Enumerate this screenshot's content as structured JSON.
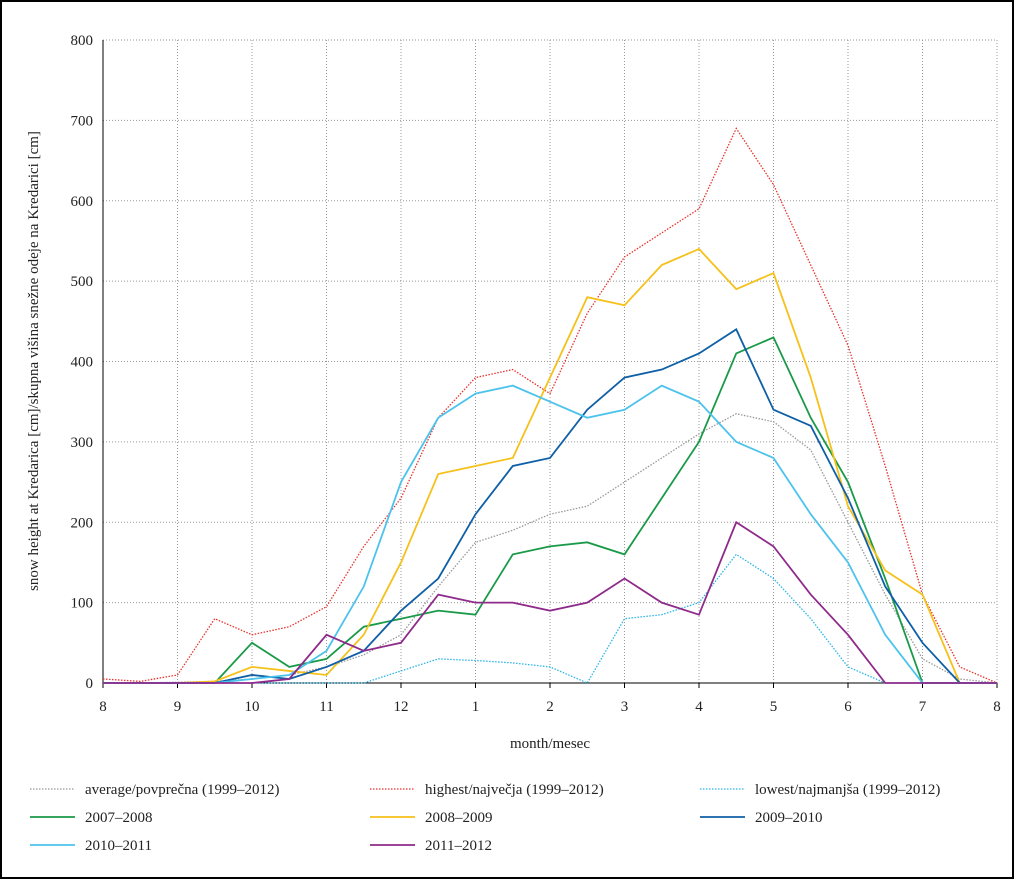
{
  "chart_data": {
    "type": "line",
    "xlabel": "month/mesec",
    "ylabel": "snow height at Kredarica [cm]/skupna višina snežne odeje na Kredarici [cm]",
    "x": [
      0,
      0.5,
      1,
      1.5,
      2,
      2.5,
      3,
      3.5,
      4,
      4.5,
      5,
      5.5,
      6,
      6.5,
      7,
      7.5,
      8,
      8.5,
      9,
      9.5,
      10,
      10.5,
      11,
      11.5,
      12
    ],
    "xlim": [
      0,
      12
    ],
    "xticks": [
      {
        "value": 0,
        "label": "8"
      },
      {
        "value": 1,
        "label": "9"
      },
      {
        "value": 2,
        "label": "10"
      },
      {
        "value": 3,
        "label": "11"
      },
      {
        "value": 4,
        "label": "12"
      },
      {
        "value": 5,
        "label": "1"
      },
      {
        "value": 6,
        "label": "2"
      },
      {
        "value": 7,
        "label": "3"
      },
      {
        "value": 8,
        "label": "4"
      },
      {
        "value": 9,
        "label": "5"
      },
      {
        "value": 10,
        "label": "6"
      },
      {
        "value": 11,
        "label": "7"
      },
      {
        "value": 12,
        "label": "8"
      }
    ],
    "ylim": [
      0,
      800
    ],
    "yticks": [
      0,
      100,
      200,
      300,
      400,
      500,
      600,
      700,
      800
    ],
    "grid": true,
    "series": [
      {
        "name": "average/povprečna (1999–2012)",
        "color": "#999999",
        "style": "dotted",
        "values": [
          0,
          0,
          1,
          2,
          5,
          10,
          20,
          35,
          60,
          120,
          175,
          190,
          210,
          220,
          250,
          280,
          310,
          335,
          325,
          290,
          200,
          110,
          30,
          5,
          0
        ]
      },
      {
        "name": "highest/največja (1999–2012)",
        "color": "#e8322b",
        "style": "dotted",
        "values": [
          5,
          2,
          10,
          80,
          60,
          70,
          95,
          170,
          230,
          330,
          380,
          390,
          360,
          460,
          530,
          560,
          590,
          690,
          620,
          520,
          420,
          270,
          110,
          20,
          0
        ]
      },
      {
        "name": "lowest/najmanjša (1999–2012)",
        "color": "#29b6e8",
        "style": "dotted",
        "values": [
          0,
          0,
          0,
          0,
          0,
          0,
          0,
          0,
          15,
          30,
          28,
          25,
          20,
          0,
          80,
          85,
          100,
          160,
          130,
          80,
          20,
          0,
          0,
          0,
          0
        ]
      },
      {
        "name": "2007–2008",
        "color": "#1a9a48",
        "style": "solid",
        "values": [
          0,
          0,
          0,
          0,
          50,
          20,
          30,
          70,
          80,
          90,
          85,
          160,
          170,
          175,
          160,
          230,
          300,
          410,
          430,
          330,
          250,
          130,
          0,
          0,
          0
        ]
      },
      {
        "name": "2008–2009",
        "color": "#f5c11a",
        "style": "solid",
        "values": [
          0,
          0,
          0,
          2,
          20,
          15,
          10,
          60,
          150,
          260,
          270,
          280,
          380,
          480,
          470,
          520,
          540,
          490,
          510,
          380,
          220,
          140,
          110,
          0,
          0
        ]
      },
      {
        "name": "2009–2010",
        "color": "#0f5fa6",
        "style": "solid",
        "values": [
          0,
          0,
          0,
          0,
          10,
          5,
          20,
          40,
          90,
          130,
          210,
          270,
          280,
          340,
          380,
          390,
          410,
          440,
          340,
          320,
          230,
          120,
          50,
          0,
          0
        ]
      },
      {
        "name": "2010–2011",
        "color": "#4cc3ec",
        "style": "solid",
        "values": [
          0,
          0,
          0,
          0,
          5,
          10,
          40,
          120,
          250,
          330,
          360,
          370,
          350,
          330,
          340,
          370,
          350,
          300,
          280,
          210,
          150,
          60,
          0,
          0,
          0
        ]
      },
      {
        "name": "2011–2012",
        "color": "#8e2a8a",
        "style": "solid",
        "values": [
          0,
          0,
          0,
          0,
          0,
          5,
          60,
          40,
          50,
          110,
          100,
          100,
          90,
          100,
          130,
          100,
          85,
          200,
          170,
          110,
          60,
          0,
          0,
          0,
          0
        ]
      }
    ]
  }
}
